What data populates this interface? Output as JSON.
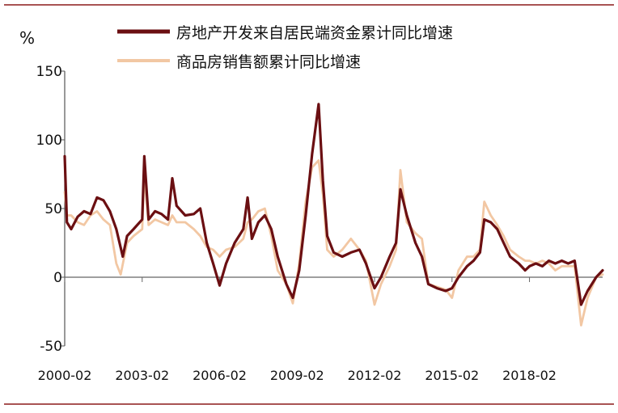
{
  "chart_data": {
    "type": "line",
    "unit_label": "%",
    "ylim": [
      -50,
      150
    ],
    "y_ticks": [
      -50,
      0,
      50,
      100,
      150
    ],
    "x_range": [
      "2000-02",
      "2020-12"
    ],
    "x_tick_labels": [
      "2000-02",
      "2003-02",
      "2006-02",
      "2009-02",
      "2012-02",
      "2015-02",
      "2018-02"
    ],
    "grid": false,
    "legend_position": "top",
    "series": [
      {
        "name": "房地产开发来自居民端资金累计同比增速",
        "color": "#6b0f12",
        "points": [
          [
            "2000-02",
            88
          ],
          [
            "2000-03",
            40
          ],
          [
            "2000-05",
            35
          ],
          [
            "2000-08",
            44
          ],
          [
            "2000-11",
            48
          ],
          [
            "2001-02",
            46
          ],
          [
            "2001-05",
            58
          ],
          [
            "2001-08",
            56
          ],
          [
            "2001-11",
            48
          ],
          [
            "2002-02",
            35
          ],
          [
            "2002-05",
            15
          ],
          [
            "2002-07",
            30
          ],
          [
            "2002-10",
            35
          ],
          [
            "2003-02",
            42
          ],
          [
            "2003-03",
            88
          ],
          [
            "2003-05",
            42
          ],
          [
            "2003-08",
            48
          ],
          [
            "2003-11",
            46
          ],
          [
            "2004-02",
            42
          ],
          [
            "2004-04",
            72
          ],
          [
            "2004-06",
            52
          ],
          [
            "2004-10",
            45
          ],
          [
            "2005-02",
            46
          ],
          [
            "2005-05",
            50
          ],
          [
            "2005-08",
            25
          ],
          [
            "2005-11",
            10
          ],
          [
            "2006-02",
            -6
          ],
          [
            "2006-05",
            10
          ],
          [
            "2006-09",
            25
          ],
          [
            "2007-01",
            35
          ],
          [
            "2007-03",
            58
          ],
          [
            "2007-05",
            28
          ],
          [
            "2007-08",
            40
          ],
          [
            "2007-11",
            45
          ],
          [
            "2008-02",
            35
          ],
          [
            "2008-05",
            15
          ],
          [
            "2008-09",
            -5
          ],
          [
            "2008-12",
            -15
          ],
          [
            "2009-03",
            5
          ],
          [
            "2009-06",
            45
          ],
          [
            "2009-09",
            90
          ],
          [
            "2009-12",
            126
          ],
          [
            "2010-02",
            70
          ],
          [
            "2010-04",
            30
          ],
          [
            "2010-07",
            18
          ],
          [
            "2010-11",
            15
          ],
          [
            "2011-03",
            18
          ],
          [
            "2011-07",
            20
          ],
          [
            "2011-10",
            10
          ],
          [
            "2012-02",
            -8
          ],
          [
            "2012-05",
            0
          ],
          [
            "2012-09",
            15
          ],
          [
            "2012-12",
            25
          ],
          [
            "2013-02",
            64
          ],
          [
            "2013-05",
            45
          ],
          [
            "2013-09",
            25
          ],
          [
            "2013-12",
            15
          ],
          [
            "2014-03",
            -5
          ],
          [
            "2014-07",
            -8
          ],
          [
            "2014-11",
            -10
          ],
          [
            "2015-02",
            -8
          ],
          [
            "2015-05",
            0
          ],
          [
            "2015-09",
            8
          ],
          [
            "2015-12",
            12
          ],
          [
            "2016-03",
            18
          ],
          [
            "2016-05",
            42
          ],
          [
            "2016-08",
            40
          ],
          [
            "2016-11",
            35
          ],
          [
            "2017-02",
            25
          ],
          [
            "2017-05",
            15
          ],
          [
            "2017-09",
            10
          ],
          [
            "2017-12",
            5
          ],
          [
            "2018-02",
            8
          ],
          [
            "2018-05",
            10
          ],
          [
            "2018-08",
            8
          ],
          [
            "2018-11",
            12
          ],
          [
            "2019-02",
            10
          ],
          [
            "2019-05",
            12
          ],
          [
            "2019-08",
            10
          ],
          [
            "2019-11",
            12
          ],
          [
            "2020-02",
            -20
          ],
          [
            "2020-05",
            -10
          ],
          [
            "2020-09",
            0
          ],
          [
            "2020-12",
            5
          ]
        ]
      },
      {
        "name": "商品房销售额累计同比增速",
        "color": "#f2c7a3",
        "points": [
          [
            "2000-02",
            62
          ],
          [
            "2000-03",
            45
          ],
          [
            "2000-05",
            45
          ],
          [
            "2000-08",
            40
          ],
          [
            "2000-11",
            38
          ],
          [
            "2001-02",
            45
          ],
          [
            "2001-05",
            48
          ],
          [
            "2001-08",
            42
          ],
          [
            "2001-11",
            38
          ],
          [
            "2002-02",
            10
          ],
          [
            "2002-04",
            2
          ],
          [
            "2002-07",
            25
          ],
          [
            "2002-10",
            30
          ],
          [
            "2003-02",
            35
          ],
          [
            "2003-03",
            75
          ],
          [
            "2003-05",
            38
          ],
          [
            "2003-08",
            42
          ],
          [
            "2003-11",
            40
          ],
          [
            "2004-02",
            38
          ],
          [
            "2004-04",
            45
          ],
          [
            "2004-06",
            40
          ],
          [
            "2004-10",
            40
          ],
          [
            "2005-02",
            35
          ],
          [
            "2005-05",
            30
          ],
          [
            "2005-08",
            22
          ],
          [
            "2005-11",
            20
          ],
          [
            "2006-02",
            15
          ],
          [
            "2006-05",
            20
          ],
          [
            "2006-09",
            22
          ],
          [
            "2007-01",
            28
          ],
          [
            "2007-03",
            40
          ],
          [
            "2007-05",
            42
          ],
          [
            "2007-08",
            48
          ],
          [
            "2007-11",
            50
          ],
          [
            "2008-02",
            30
          ],
          [
            "2008-05",
            5
          ],
          [
            "2008-09",
            -5
          ],
          [
            "2008-12",
            -19
          ],
          [
            "2009-03",
            10
          ],
          [
            "2009-06",
            55
          ],
          [
            "2009-09",
            80
          ],
          [
            "2009-12",
            85
          ],
          [
            "2010-02",
            60
          ],
          [
            "2010-04",
            20
          ],
          [
            "2010-07",
            15
          ],
          [
            "2010-11",
            20
          ],
          [
            "2011-03",
            28
          ],
          [
            "2011-07",
            20
          ],
          [
            "2011-10",
            12
          ],
          [
            "2012-02",
            -20
          ],
          [
            "2012-05",
            -5
          ],
          [
            "2012-09",
            8
          ],
          [
            "2012-12",
            20
          ],
          [
            "2013-02",
            78
          ],
          [
            "2013-05",
            40
          ],
          [
            "2013-09",
            32
          ],
          [
            "2013-12",
            28
          ],
          [
            "2014-03",
            -5
          ],
          [
            "2014-07",
            -7
          ],
          [
            "2014-11",
            -9
          ],
          [
            "2015-02",
            -15
          ],
          [
            "2015-05",
            5
          ],
          [
            "2015-09",
            15
          ],
          [
            "2015-12",
            15
          ],
          [
            "2016-03",
            20
          ],
          [
            "2016-05",
            55
          ],
          [
            "2016-08",
            45
          ],
          [
            "2016-11",
            38
          ],
          [
            "2017-02",
            30
          ],
          [
            "2017-05",
            20
          ],
          [
            "2017-09",
            15
          ],
          [
            "2017-12",
            12
          ],
          [
            "2018-02",
            12
          ],
          [
            "2018-05",
            10
          ],
          [
            "2018-08",
            12
          ],
          [
            "2018-11",
            10
          ],
          [
            "2019-02",
            5
          ],
          [
            "2019-05",
            8
          ],
          [
            "2019-08",
            8
          ],
          [
            "2019-11",
            8
          ],
          [
            "2020-02",
            -35
          ],
          [
            "2020-05",
            -15
          ],
          [
            "2020-09",
            0
          ],
          [
            "2020-12",
            2
          ]
        ]
      }
    ]
  }
}
